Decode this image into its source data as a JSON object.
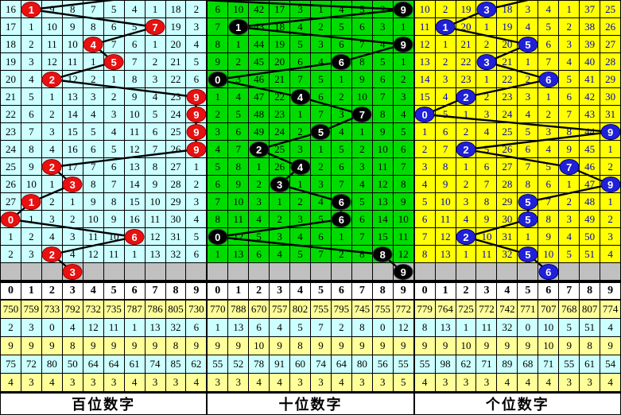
{
  "chart_data": {
    "type": "table",
    "panels": [
      {
        "title": "百位数字",
        "digits": [
          "0",
          "1",
          "2",
          "3",
          "4",
          "5",
          "6",
          "7",
          "8",
          "9"
        ],
        "drawn_sequence": [
          1,
          7,
          4,
          5,
          2,
          9,
          9,
          9,
          9,
          2,
          3,
          1,
          0,
          6,
          2
        ],
        "pending_digit": 3,
        "rows": [
          [
            16,
            1,
            9,
            8,
            7,
            5,
            4,
            1,
            18,
            2
          ],
          [
            17,
            1,
            10,
            9,
            8,
            6,
            5,
            7,
            19,
            3
          ],
          [
            18,
            2,
            11,
            10,
            4,
            7,
            6,
            1,
            20,
            4
          ],
          [
            19,
            3,
            12,
            11,
            1,
            5,
            7,
            2,
            21,
            5
          ],
          [
            20,
            4,
            2,
            12,
            2,
            1,
            8,
            3,
            22,
            6
          ],
          [
            21,
            5,
            1,
            13,
            3,
            2,
            9,
            4,
            23,
            9
          ],
          [
            22,
            6,
            2,
            14,
            4,
            3,
            10,
            5,
            24,
            9
          ],
          [
            23,
            7,
            3,
            15,
            5,
            4,
            11,
            6,
            25,
            9
          ],
          [
            24,
            8,
            4,
            16,
            6,
            5,
            12,
            7,
            26,
            9
          ],
          [
            25,
            9,
            2,
            17,
            7,
            6,
            13,
            8,
            27,
            1
          ],
          [
            26,
            10,
            1,
            3,
            8,
            7,
            14,
            9,
            28,
            2
          ],
          [
            27,
            1,
            2,
            1,
            9,
            8,
            15,
            10,
            29,
            3
          ],
          [
            0,
            1,
            3,
            2,
            10,
            9,
            16,
            11,
            30,
            4
          ],
          [
            1,
            2,
            4,
            3,
            11,
            10,
            6,
            12,
            31,
            5
          ],
          [
            2,
            3,
            2,
            4,
            12,
            11,
            1,
            13,
            32,
            6
          ]
        ],
        "stats_rows": [
          [
            750,
            759,
            733,
            792,
            732,
            735,
            787,
            786,
            805,
            730
          ],
          [
            2,
            3,
            0,
            4,
            12,
            11,
            1,
            13,
            32,
            6
          ],
          [
            9,
            9,
            9,
            8,
            9,
            9,
            9,
            9,
            8,
            9
          ],
          [
            75,
            72,
            80,
            50,
            64,
            64,
            61,
            74,
            85,
            62
          ],
          [
            4,
            3,
            4,
            3,
            3,
            3,
            4,
            3,
            3,
            4
          ]
        ],
        "style": {
          "bg": "#ccffff",
          "text": "#000000",
          "circle": "#e81010",
          "circle_border": "#a00000",
          "lead_in": [
            235,
            -12
          ]
        }
      },
      {
        "title": "十位数字",
        "digits": [
          "0",
          "1",
          "2",
          "3",
          "4",
          "5",
          "6",
          "7",
          "8",
          "9"
        ],
        "drawn_sequence": [
          9,
          1,
          9,
          6,
          0,
          4,
          7,
          5,
          2,
          4,
          3,
          6,
          6,
          0,
          8
        ],
        "pending_digit": 9,
        "rows": [
          [
            6,
            10,
            42,
            17,
            3,
            1,
            4,
            5,
            2,
            9
          ],
          [
            7,
            1,
            43,
            18,
            4,
            2,
            5,
            6,
            3,
            1
          ],
          [
            8,
            1,
            44,
            19,
            5,
            3,
            6,
            7,
            4,
            9
          ],
          [
            9,
            2,
            45,
            20,
            6,
            4,
            6,
            8,
            5,
            1
          ],
          [
            0,
            3,
            46,
            21,
            7,
            5,
            1,
            9,
            6,
            2
          ],
          [
            1,
            4,
            47,
            22,
            4,
            6,
            2,
            10,
            7,
            3
          ],
          [
            2,
            5,
            48,
            23,
            1,
            7,
            3,
            7,
            8,
            4
          ],
          [
            3,
            6,
            49,
            24,
            2,
            5,
            4,
            1,
            9,
            5
          ],
          [
            4,
            7,
            2,
            25,
            3,
            1,
            5,
            2,
            10,
            6
          ],
          [
            5,
            8,
            1,
            26,
            4,
            2,
            6,
            3,
            11,
            7
          ],
          [
            6,
            9,
            2,
            3,
            1,
            3,
            7,
            4,
            12,
            8
          ],
          [
            7,
            10,
            3,
            1,
            2,
            4,
            6,
            5,
            13,
            9
          ],
          [
            8,
            11,
            4,
            2,
            3,
            5,
            6,
            6,
            14,
            10
          ],
          [
            0,
            12,
            5,
            3,
            4,
            6,
            1,
            7,
            15,
            11
          ],
          [
            1,
            13,
            6,
            4,
            5,
            7,
            2,
            8,
            8,
            12
          ]
        ],
        "stats_rows": [
          [
            770,
            788,
            670,
            757,
            802,
            755,
            795,
            745,
            755,
            772
          ],
          [
            1,
            13,
            6,
            4,
            5,
            7,
            2,
            8,
            0,
            12
          ],
          [
            9,
            9,
            10,
            9,
            8,
            9,
            9,
            9,
            9,
            9
          ],
          [
            55,
            52,
            78,
            91,
            60,
            74,
            64,
            80,
            56,
            55
          ],
          [
            3,
            3,
            4,
            4,
            3,
            3,
            4,
            3,
            3,
            5
          ]
        ],
        "style": {
          "bg": "#00dc00",
          "text": "#000000",
          "circle": "#000000",
          "circle_border": "#333333",
          "lead_in": [
            -6,
            -1
          ]
        }
      },
      {
        "title": "个位数字",
        "digits": [
          "0",
          "1",
          "2",
          "3",
          "4",
          "5",
          "6",
          "7",
          "8",
          "9"
        ],
        "drawn_sequence": [
          3,
          1,
          5,
          3,
          6,
          2,
          0,
          9,
          2,
          7,
          9,
          5,
          5,
          2,
          5
        ],
        "pending_digit": 6,
        "rows": [
          [
            10,
            2,
            19,
            3,
            18,
            3,
            4,
            1,
            37,
            25
          ],
          [
            11,
            1,
            20,
            1,
            19,
            4,
            5,
            2,
            38,
            26
          ],
          [
            12,
            1,
            21,
            2,
            20,
            5,
            6,
            3,
            39,
            27
          ],
          [
            13,
            2,
            22,
            3,
            21,
            1,
            7,
            4,
            40,
            28
          ],
          [
            14,
            3,
            23,
            1,
            22,
            2,
            6,
            5,
            41,
            29
          ],
          [
            15,
            4,
            2,
            2,
            23,
            3,
            1,
            6,
            42,
            30
          ],
          [
            0,
            5,
            1,
            3,
            24,
            4,
            2,
            7,
            43,
            31
          ],
          [
            1,
            6,
            2,
            4,
            25,
            5,
            3,
            8,
            44,
            9
          ],
          [
            2,
            7,
            2,
            5,
            26,
            6,
            4,
            9,
            45,
            1
          ],
          [
            3,
            8,
            1,
            6,
            27,
            7,
            5,
            7,
            46,
            2
          ],
          [
            4,
            9,
            2,
            7,
            28,
            8,
            6,
            1,
            47,
            9
          ],
          [
            5,
            10,
            3,
            8,
            29,
            5,
            7,
            2,
            48,
            1
          ],
          [
            6,
            11,
            4,
            9,
            30,
            5,
            8,
            3,
            49,
            2
          ],
          [
            7,
            12,
            2,
            10,
            31,
            1,
            9,
            4,
            50,
            3
          ],
          [
            8,
            13,
            1,
            11,
            32,
            5,
            10,
            5,
            51,
            4
          ]
        ],
        "stats_rows": [
          [
            779,
            764,
            725,
            772,
            742,
            771,
            707,
            768,
            807,
            774
          ],
          [
            8,
            13,
            1,
            11,
            32,
            0,
            10,
            5,
            51,
            4
          ],
          [
            9,
            9,
            10,
            9,
            9,
            9,
            10,
            9,
            8,
            9
          ],
          [
            55,
            98,
            62,
            71,
            89,
            68,
            71,
            55,
            61,
            54
          ],
          [
            4,
            3,
            3,
            3,
            4,
            4,
            4,
            3,
            3,
            4
          ]
        ],
        "style": {
          "bg": "#ffff00",
          "text": "#0000bb",
          "circle": "#2020d8",
          "circle_border": "#000080",
          "lead_in": [
            190,
            -12
          ]
        }
      }
    ],
    "layout": {
      "grid_line_color": "#000000",
      "trend_line_color": "#000000",
      "pending_row_color": "#c0c0c0",
      "stats_band_colors": [
        "#ffff99",
        "#ccffff",
        "#ffff99",
        "#ccffff",
        "#ffff99"
      ],
      "header_bg": "#ffffff",
      "title_bg": "#ffffff"
    }
  }
}
